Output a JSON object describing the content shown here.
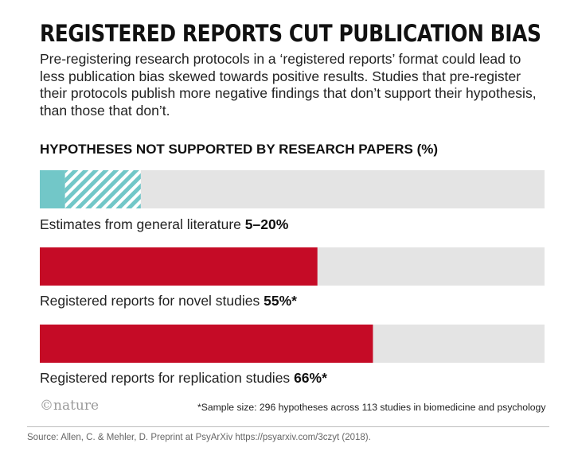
{
  "chart_data": {
    "type": "bar",
    "orientation": "horizontal",
    "title": "REGISTERED REPORTS CUT PUBLICATION BIAS",
    "subtitle": "Pre-registering research protocols in a ‘registered reports’ format could lead to less publication bias skewed towards positive results. Studies that pre-register their protocols publish more negative findings that don’t support their hypothesis, than those that don’t.",
    "heading": "HYPOTHESES NOT SUPPORTED BY RESEARCH PAPERS (%)",
    "xlim": [
      0,
      100
    ],
    "grid": false,
    "categories": [
      "Estimates from general literature",
      "Registered reports for novel studies",
      "Registered reports for replication studies"
    ],
    "value_labels": [
      "5–20%",
      "55%*",
      "66%*"
    ],
    "values": [
      [
        5,
        20
      ],
      55,
      66
    ],
    "colors": {
      "range_solid": "#72c7c8",
      "range_hatch": "#72c7c8",
      "value": "#c50b26",
      "track": "#e4e4e4"
    },
    "footnote": "*Sample size: 296 hypotheses across 113 studies in biomedicine and psychology",
    "logo": "©nature",
    "source": "Source: Allen, C. & Mehler, D. Preprint at PsyArXiv https://psyarxiv.com/3czyt (2018)."
  }
}
